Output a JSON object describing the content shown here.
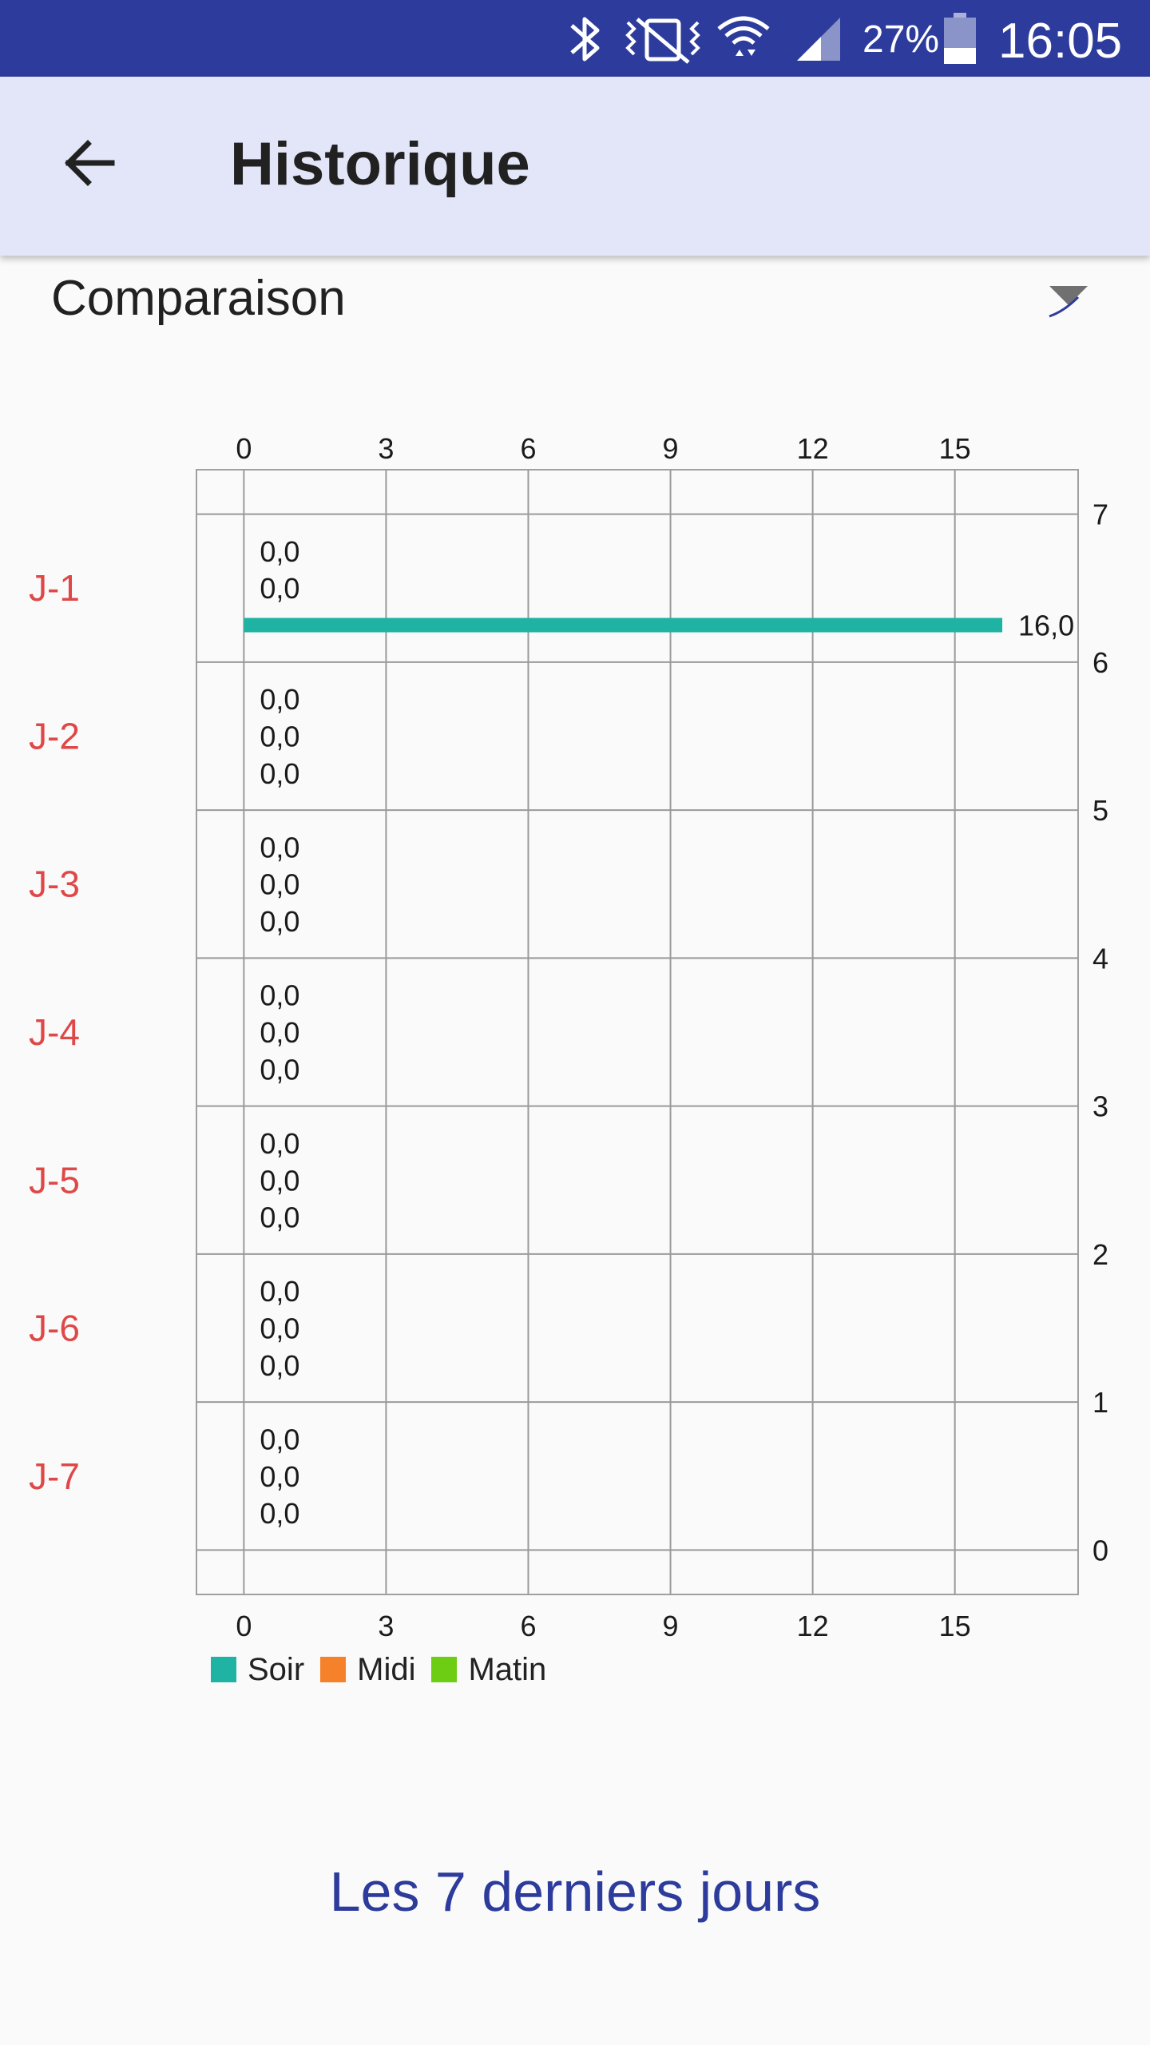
{
  "status_bar": {
    "battery_percent": "27%",
    "time": "16:05",
    "icons": [
      "bluetooth-icon",
      "vibrate-icon",
      "wifi-icon",
      "signal-icon",
      "battery-icon"
    ]
  },
  "app_bar": {
    "back_icon": "arrow-left-icon",
    "title": "Historique"
  },
  "spinner": {
    "selected": "Comparaison",
    "icon": "dropdown-triangle-icon"
  },
  "chart_data": {
    "type": "horizontal-stacked-bar",
    "categories": [
      "J-1",
      "J-2",
      "J-3",
      "J-4",
      "J-5",
      "J-6",
      "J-7"
    ],
    "series": [
      {
        "name": "Soir",
        "color": "#1fb3a3",
        "values": [
          16.0,
          0.0,
          0.0,
          0.0,
          0.0,
          0.0,
          0.0
        ]
      },
      {
        "name": "Midi",
        "color": "#f5822a",
        "values": [
          0.0,
          0.0,
          0.0,
          0.0,
          0.0,
          0.0,
          0.0
        ]
      },
      {
        "name": "Matin",
        "color": "#6ccd12",
        "values": [
          0.0,
          0.0,
          0.0,
          0.0,
          0.0,
          0.0,
          0.0
        ]
      }
    ],
    "value_labels": [
      [
        "0,0",
        "0,0",
        "16,0"
      ],
      [
        "0,0",
        "0,0",
        "0,0"
      ],
      [
        "0,0",
        "0,0",
        "0,0"
      ],
      [
        "0,0",
        "0,0",
        "0,0"
      ],
      [
        "0,0",
        "0,0",
        "0,0"
      ],
      [
        "0,0",
        "0,0",
        "0,0"
      ],
      [
        "0,0",
        "0,0",
        "0,0"
      ]
    ],
    "value_axis": {
      "range": [
        -1,
        17.6
      ],
      "ticks": [
        0,
        3,
        6,
        9,
        12,
        15
      ]
    },
    "index_axis": {
      "range": [
        -0.3,
        7.3
      ],
      "ticks": [
        0,
        1,
        2,
        3,
        4,
        5,
        6,
        7
      ]
    },
    "category_color": "#e04848",
    "grid": true,
    "legend": [
      "Soir",
      "Midi",
      "Matin"
    ]
  },
  "footer": {
    "link_text": "Les 7 derniers jours"
  }
}
